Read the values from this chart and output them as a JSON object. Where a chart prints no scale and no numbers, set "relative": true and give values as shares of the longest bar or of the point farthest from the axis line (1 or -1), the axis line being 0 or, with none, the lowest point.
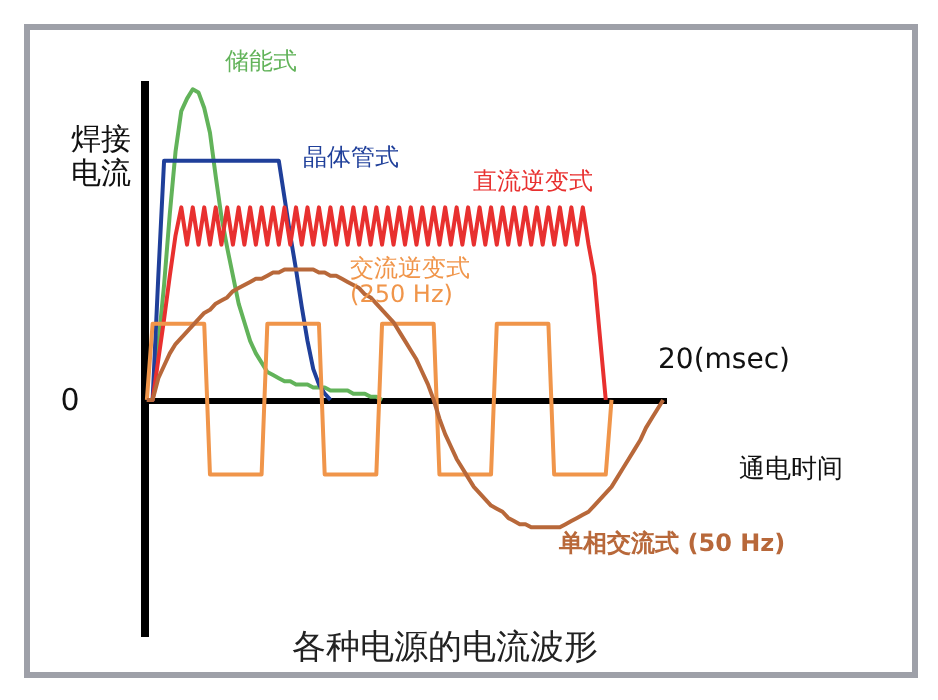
{
  "chart_data": {
    "type": "line",
    "title": "各种电源的电流波形",
    "xlabel": "通电时间",
    "ylabel": "焊接电流",
    "relative": true,
    "annotations": [
      "0",
      "20(msec)"
    ],
    "categories": [
      null,
      null,
      null,
      null,
      null,
      null,
      null,
      null,
      null,
      null,
      null,
      null,
      null,
      null,
      null,
      null,
      null,
      null,
      null,
      null,
      null,
      null,
      null,
      null,
      null,
      null,
      null,
      null,
      null,
      null,
      null,
      null,
      null,
      null,
      null,
      null,
      null,
      null,
      null,
      null,
      null,
      null,
      null,
      null,
      null,
      null,
      null,
      null,
      null,
      null,
      null,
      null,
      null,
      null,
      null,
      null,
      null,
      null,
      null,
      null,
      null,
      null,
      null,
      null,
      null,
      null,
      null,
      null,
      null,
      null,
      null,
      null,
      null,
      null,
      null,
      null,
      null,
      null,
      null,
      null,
      null,
      null,
      null,
      null,
      null,
      null,
      null,
      null,
      null,
      null,
      null
    ],
    "series": [
      {
        "name": "储能式",
        "color": "#62b35a",
        "values": [
          0,
          0,
          0.18,
          0.37,
          0.6,
          0.8,
          0.93,
          0.97,
          1,
          0.99,
          0.94,
          0.86,
          0.72,
          0.59,
          0.49,
          0.4,
          0.31,
          0.25,
          0.19,
          0.15,
          0.12,
          0.09,
          0.08,
          0.07,
          0.06,
          0.06,
          0.05,
          0.05,
          0.05,
          0.04,
          0.04,
          0.04,
          0.03,
          0.03,
          0.03,
          0.03,
          0.02,
          0.02,
          0.02,
          0.01,
          0.01,
          0,
          null,
          null,
          null,
          null,
          null,
          null,
          null,
          null,
          null,
          null,
          null,
          null,
          null,
          null,
          null,
          null,
          null,
          null,
          null,
          null,
          null,
          null,
          null,
          null,
          null,
          null,
          null,
          null,
          null,
          null,
          null,
          null,
          null,
          null,
          null,
          null,
          null,
          null,
          null,
          null,
          null,
          null,
          null,
          null,
          null,
          null,
          null,
          null,
          null
        ]
      },
      {
        "name": "晶体管式",
        "color": "#1f3f9a",
        "values": [
          0,
          0,
          0.4,
          0.77,
          0.77,
          0.77,
          0.77,
          0.77,
          0.77,
          0.77,
          0.77,
          0.77,
          0.77,
          0.77,
          0.77,
          0.77,
          0.77,
          0.77,
          0.77,
          0.77,
          0.77,
          0.77,
          0.77,
          0.77,
          0.65,
          0.53,
          0.42,
          0.3,
          0.19,
          0.1,
          0.05,
          0.02,
          0,
          null,
          null,
          null,
          null,
          null,
          null,
          null,
          null,
          null,
          null,
          null,
          null,
          null,
          null,
          null,
          null,
          null,
          null,
          null,
          null,
          null,
          null,
          null,
          null,
          null,
          null,
          null,
          null,
          null,
          null,
          null,
          null,
          null,
          null,
          null,
          null,
          null,
          null,
          null,
          null,
          null,
          null,
          null,
          null,
          null,
          null,
          null,
          null,
          null,
          null,
          null,
          null,
          null,
          null,
          null,
          null,
          null,
          null
        ]
      },
      {
        "name": "直流逆变式",
        "color": "#e8302f",
        "values": [
          0,
          0,
          0.13,
          0.26,
          0.4,
          0.53,
          0.62,
          0.5,
          0.62,
          0.5,
          0.62,
          0.5,
          0.62,
          0.5,
          0.62,
          0.5,
          0.62,
          0.5,
          0.62,
          0.5,
          0.62,
          0.5,
          0.62,
          0.5,
          0.62,
          0.5,
          0.62,
          0.5,
          0.62,
          0.5,
          0.62,
          0.5,
          0.62,
          0.5,
          0.62,
          0.5,
          0.62,
          0.5,
          0.62,
          0.5,
          0.62,
          0.5,
          0.62,
          0.5,
          0.62,
          0.5,
          0.62,
          0.5,
          0.62,
          0.5,
          0.62,
          0.5,
          0.62,
          0.5,
          0.62,
          0.5,
          0.62,
          0.5,
          0.62,
          0.5,
          0.62,
          0.5,
          0.62,
          0.5,
          0.62,
          0.5,
          0.62,
          0.5,
          0.62,
          0.5,
          0.62,
          0.5,
          0.62,
          0.5,
          0.62,
          0.5,
          0.62,
          0.5,
          0.4,
          0.2,
          0,
          null,
          null,
          null,
          null,
          null,
          null,
          null,
          null,
          null,
          null
        ]
      },
      {
        "name": "交流逆变式 (250 Hz)",
        "color": "#f0954a",
        "values": [
          0,
          0.245,
          0.245,
          0.245,
          0.245,
          0.245,
          0.245,
          0.245,
          0.245,
          0.245,
          0.245,
          -0.24,
          -0.24,
          -0.24,
          -0.24,
          -0.24,
          -0.24,
          -0.24,
          -0.24,
          -0.24,
          -0.24,
          0.245,
          0.245,
          0.245,
          0.245,
          0.245,
          0.245,
          0.245,
          0.245,
          0.245,
          0.245,
          -0.24,
          -0.24,
          -0.24,
          -0.24,
          -0.24,
          -0.24,
          -0.24,
          -0.24,
          -0.24,
          -0.24,
          0.245,
          0.245,
          0.245,
          0.245,
          0.245,
          0.245,
          0.245,
          0.245,
          0.245,
          0.245,
          -0.24,
          -0.24,
          -0.24,
          -0.24,
          -0.24,
          -0.24,
          -0.24,
          -0.24,
          -0.24,
          -0.24,
          0.245,
          0.245,
          0.245,
          0.245,
          0.245,
          0.245,
          0.245,
          0.245,
          0.245,
          0.245,
          -0.24,
          -0.24,
          -0.24,
          -0.24,
          -0.24,
          -0.24,
          -0.24,
          -0.24,
          -0.24,
          -0.24,
          0,
          null,
          null,
          null,
          null,
          null,
          null,
          null,
          null,
          null
        ]
      },
      {
        "name": "单相交流式 (50 Hz)",
        "color": "#b8683a",
        "values": [
          0,
          0,
          0.07,
          0.11,
          0.15,
          0.18,
          0.2,
          0.22,
          0.24,
          0.26,
          0.28,
          0.29,
          0.31,
          0.32,
          0.33,
          0.35,
          0.36,
          0.37,
          0.38,
          0.39,
          0.39,
          0.4,
          0.41,
          0.41,
          0.42,
          0.42,
          0.42,
          0.42,
          0.42,
          0.42,
          0.41,
          0.41,
          0.4,
          0.4,
          0.39,
          0.38,
          0.37,
          0.36,
          0.34,
          0.33,
          0.31,
          0.29,
          0.27,
          0.25,
          0.22,
          0.19,
          0.16,
          0.13,
          0.09,
          0.05,
          0,
          -0.06,
          -0.11,
          -0.15,
          -0.19,
          -0.22,
          -0.25,
          -0.28,
          -0.3,
          -0.32,
          -0.34,
          -0.35,
          -0.36,
          -0.38,
          -0.39,
          -0.4,
          -0.4,
          -0.41,
          -0.41,
          -0.41,
          -0.41,
          -0.41,
          -0.41,
          -0.4,
          -0.39,
          -0.38,
          -0.37,
          -0.36,
          -0.34,
          -0.32,
          -0.3,
          -0.28,
          -0.25,
          -0.22,
          -0.19,
          -0.16,
          -0.13,
          -0.09,
          -0.06,
          -0.03,
          0
        ]
      }
    ]
  }
}
